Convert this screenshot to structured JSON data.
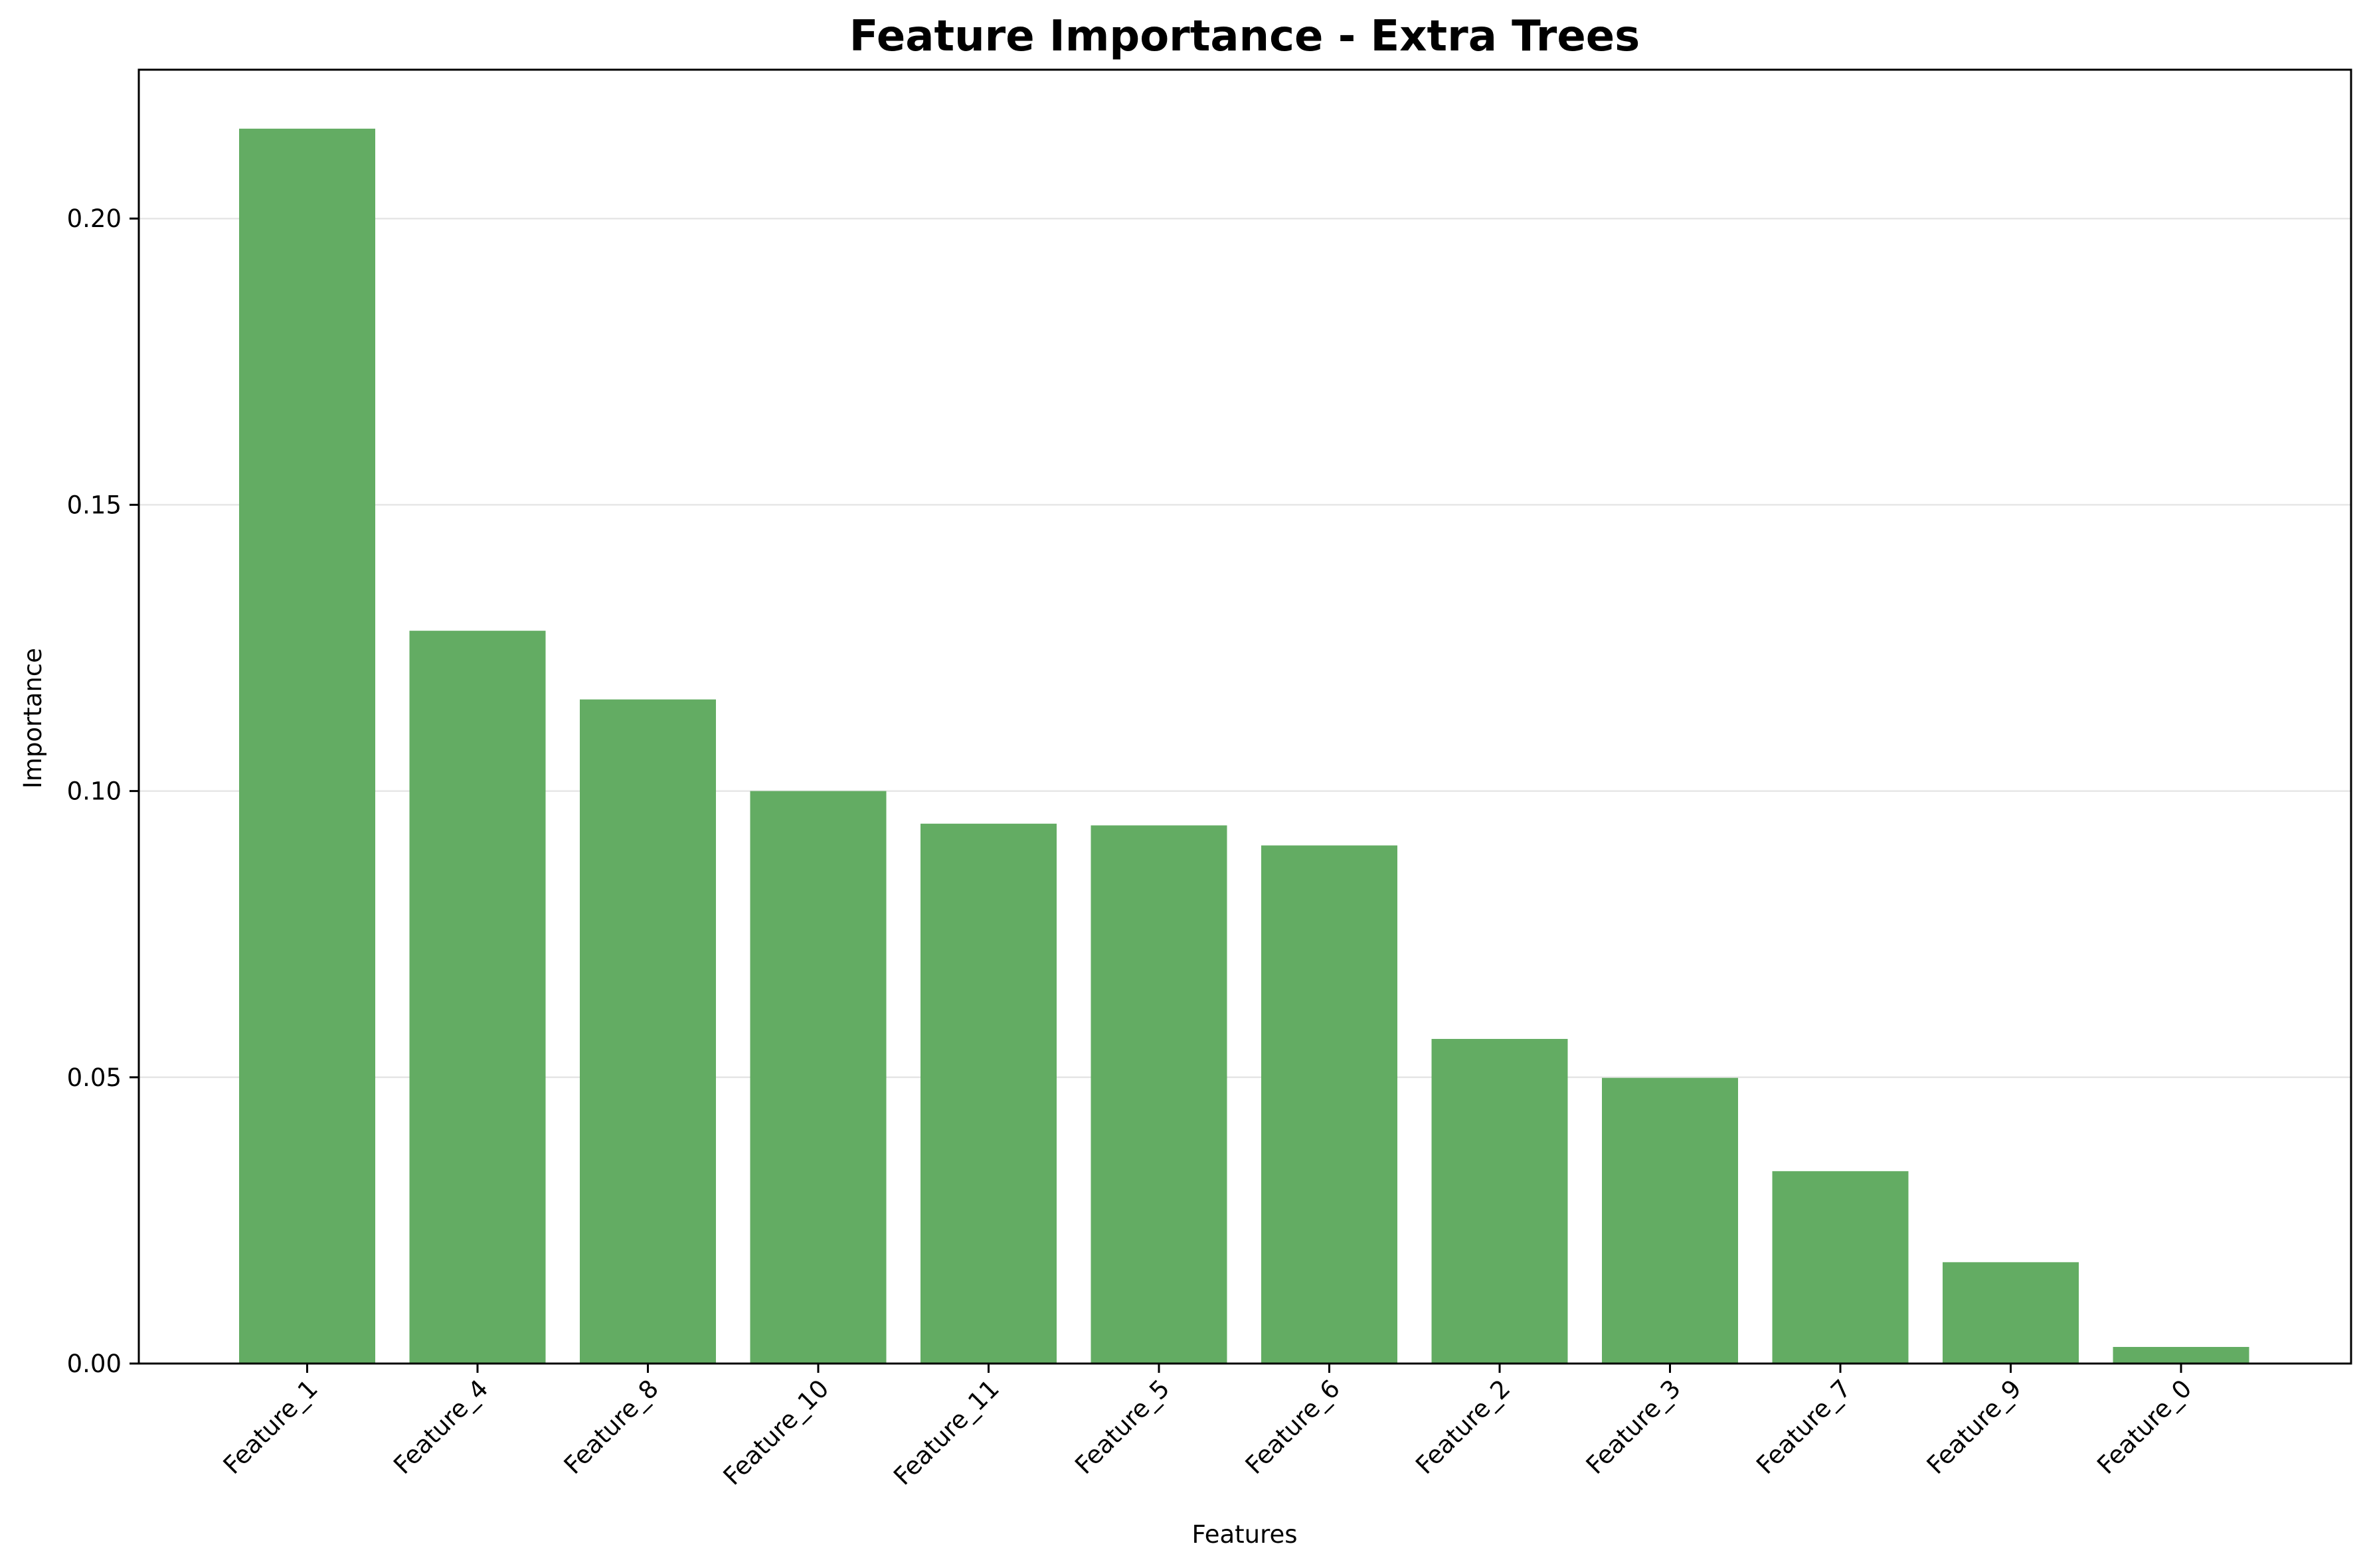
{
  "chart_data": {
    "type": "bar",
    "title": "Feature Importance - Extra Trees",
    "xlabel": "Features",
    "ylabel": "Importance",
    "categories": [
      "Feature_1",
      "Feature_4",
      "Feature_8",
      "Feature_10",
      "Feature_11",
      "Feature_5",
      "Feature_6",
      "Feature_2",
      "Feature_3",
      "Feature_7",
      "Feature_9",
      "Feature_0"
    ],
    "values": [
      0.2157,
      0.128,
      0.116,
      0.1,
      0.0943,
      0.094,
      0.0905,
      0.0567,
      0.0499,
      0.0336,
      0.0177,
      0.0029
    ],
    "ylim": [
      0,
      0.226
    ],
    "yticks": [
      "0.00",
      "0.05",
      "0.10",
      "0.15",
      "0.20"
    ],
    "ytick_values": [
      0,
      0.05,
      0.1,
      0.15,
      0.2
    ],
    "grid": "y",
    "bar_color": "#63ac63",
    "legend": "none"
  }
}
